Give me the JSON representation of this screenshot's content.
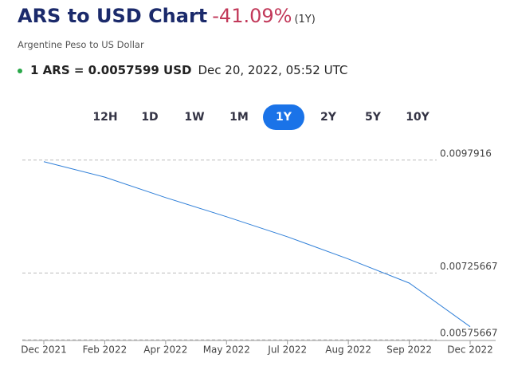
{
  "chart_data": {
    "type": "line",
    "title": "ARS to USD Chart",
    "change": "-41.09%",
    "period": "(1Y)",
    "subtitle": "Argentine Peso to US Dollar",
    "rate": "1 ARS = 0.0057599 USD",
    "timestamp": "Dec 20, 2022, 05:52 UTC",
    "ranges": [
      "12H",
      "1D",
      "1W",
      "1M",
      "1Y",
      "2Y",
      "5Y",
      "10Y"
    ],
    "selected_range": "1Y",
    "x": [
      "Dec 2021",
      "Feb 2022",
      "Apr 2022",
      "May 2022",
      "Jul 2022",
      "Aug 2022",
      "Sep 2022",
      "Dec 2022"
    ],
    "series": [
      {
        "name": "ARS to USD",
        "color": "#2f7fd8",
        "values": [
          0.009756,
          0.00941,
          0.00895,
          0.00852,
          0.00807,
          0.00757,
          0.00703,
          0.00605
        ]
      }
    ],
    "ylim": [
      0.00574,
      0.0102
    ],
    "yticks": [
      0.0097916,
      0.00725667,
      0.00575667
    ],
    "grid": true
  }
}
